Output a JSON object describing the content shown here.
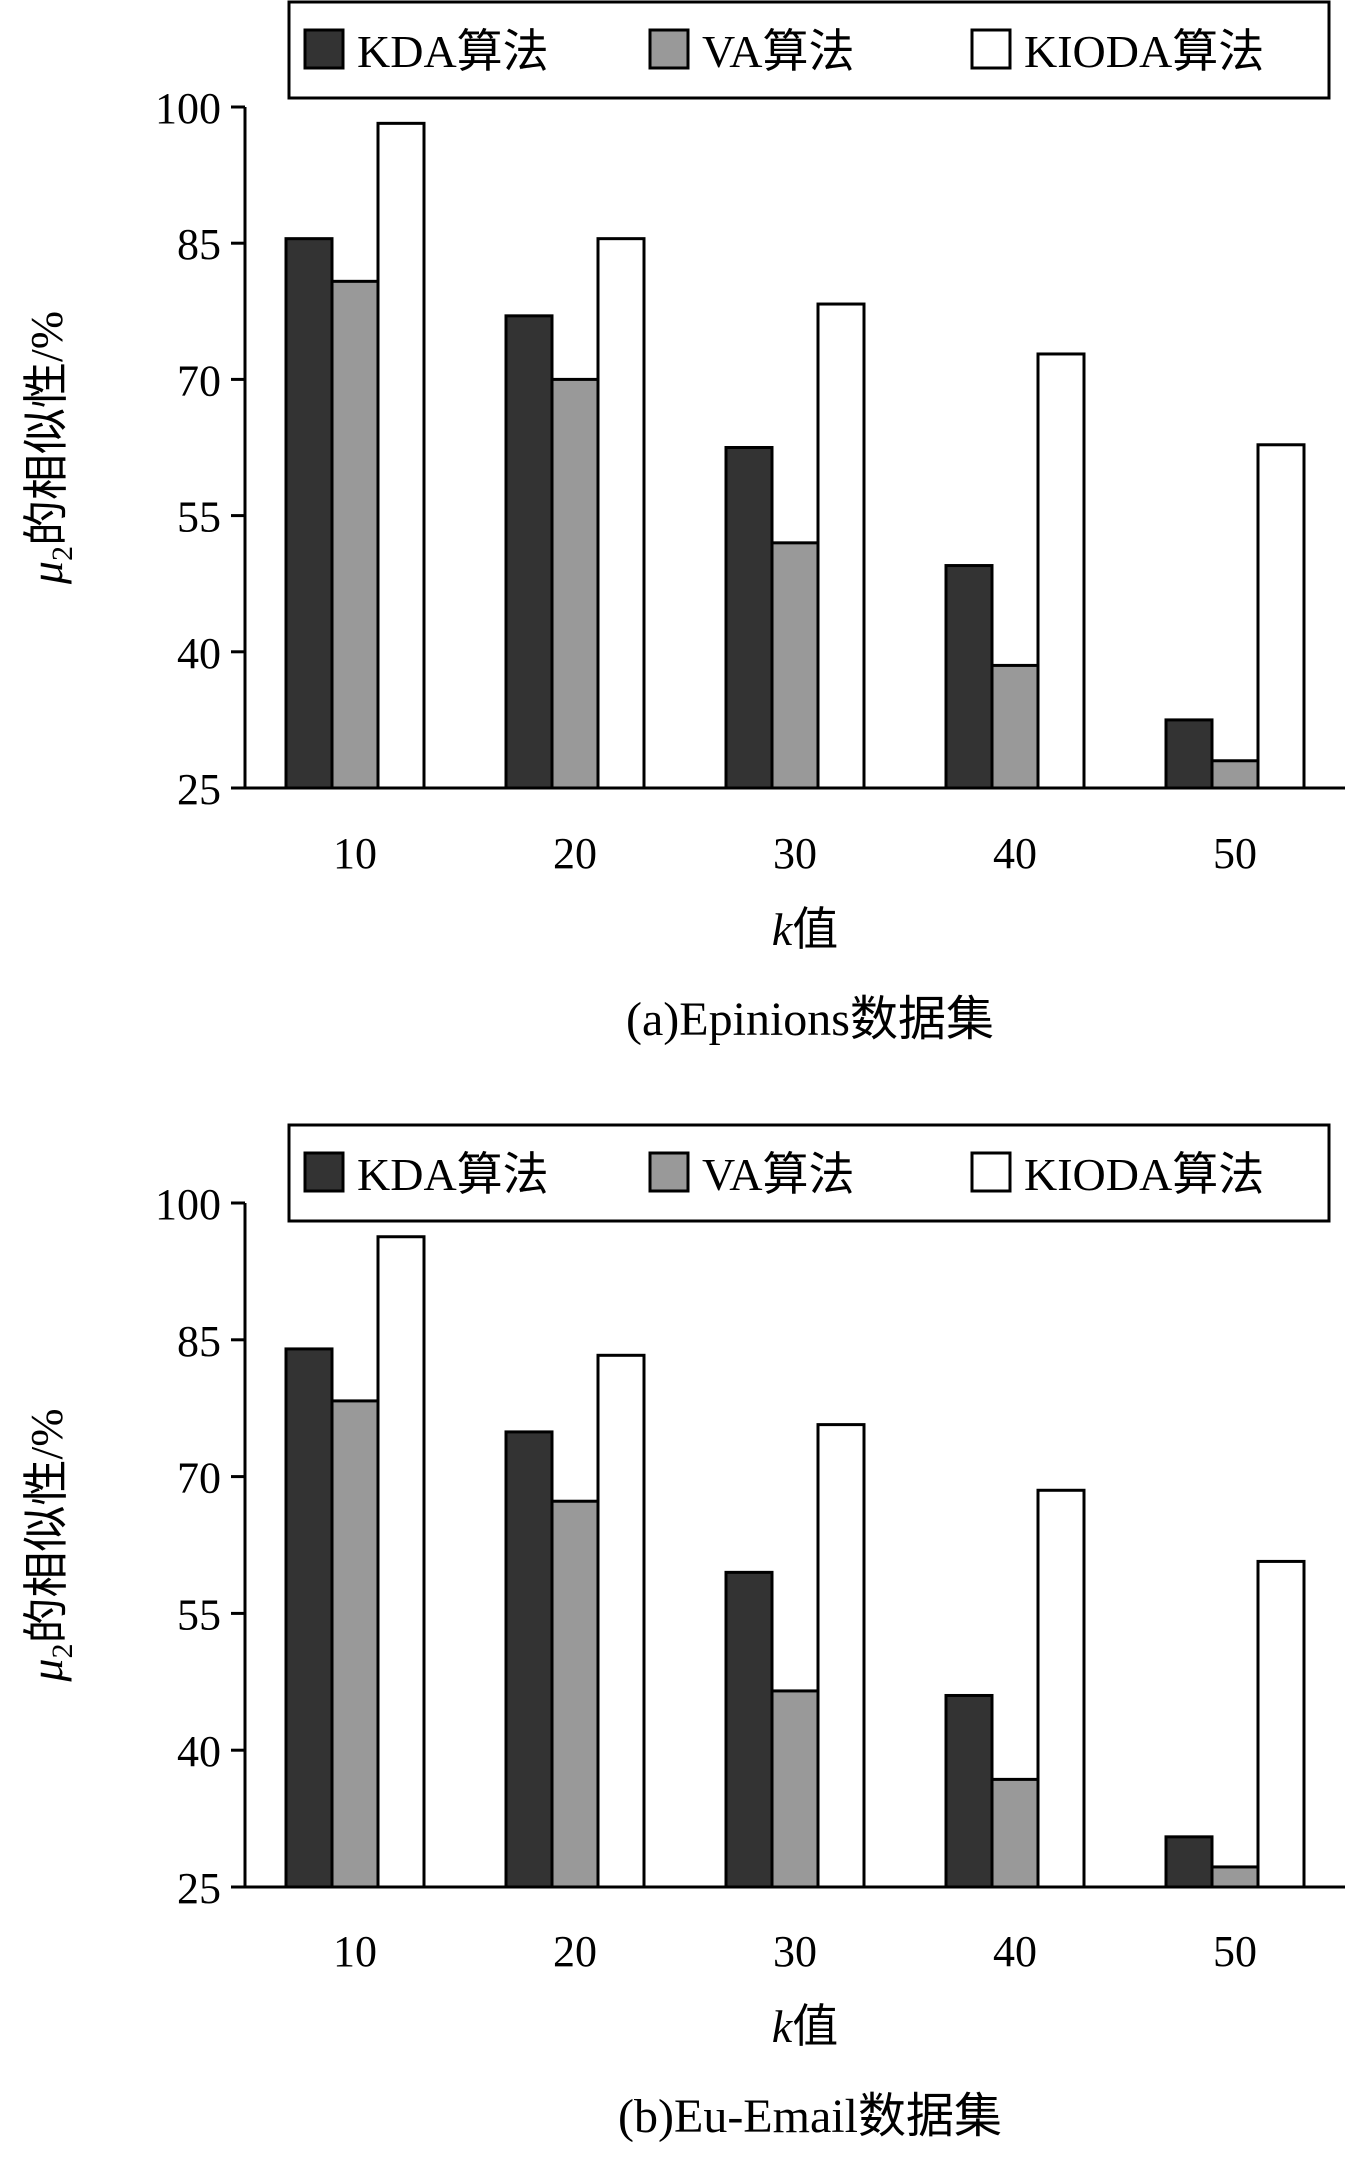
{
  "chart_data": [
    {
      "type": "bar",
      "caption": "(a)Epinions数据集",
      "xlabel_italic": "k",
      "xlabel_rest": "值",
      "ylabel_mu": "μ",
      "ylabel_sub": "2",
      "ylabel_rest": "的相似性/%",
      "ylim": [
        25,
        100
      ],
      "yticks": [
        25,
        40,
        55,
        70,
        85,
        100
      ],
      "categories": [
        "10",
        "20",
        "30",
        "40",
        "50"
      ],
      "legend_position": "top",
      "grid": false,
      "series": [
        {
          "name": "KDA算法",
          "color": "#333333",
          "values": [
            85.5,
            77,
            62.5,
            49.5,
            32.5
          ]
        },
        {
          "name": "VA算法",
          "color": "#999999",
          "values": [
            80.8,
            70,
            52,
            38.5,
            28
          ]
        },
        {
          "name": "KIODA算法",
          "color": "#ffffff",
          "values": [
            98.2,
            85.5,
            78.3,
            72.8,
            62.8
          ]
        }
      ]
    },
    {
      "type": "bar",
      "caption": "(b)Eu-Email数据集",
      "xlabel_italic": "k",
      "xlabel_rest": "值",
      "ylabel_mu": "μ",
      "ylabel_sub": "2",
      "ylabel_rest": "的相似性/%",
      "ylim": [
        25,
        100
      ],
      "yticks": [
        25,
        40,
        55,
        70,
        85,
        100
      ],
      "categories": [
        "10",
        "20",
        "30",
        "40",
        "50"
      ],
      "legend_position": "top",
      "grid": false,
      "series": [
        {
          "name": "KDA算法",
          "color": "#333333",
          "values": [
            84,
            74.9,
            59.5,
            46,
            30.5
          ]
        },
        {
          "name": "VA算法",
          "color": "#999999",
          "values": [
            78.3,
            67.3,
            46.5,
            36.8,
            27.2
          ]
        },
        {
          "name": "KIODA算法",
          "color": "#ffffff",
          "values": [
            96.3,
            83.3,
            75.7,
            68.5,
            60.7
          ]
        }
      ]
    }
  ]
}
